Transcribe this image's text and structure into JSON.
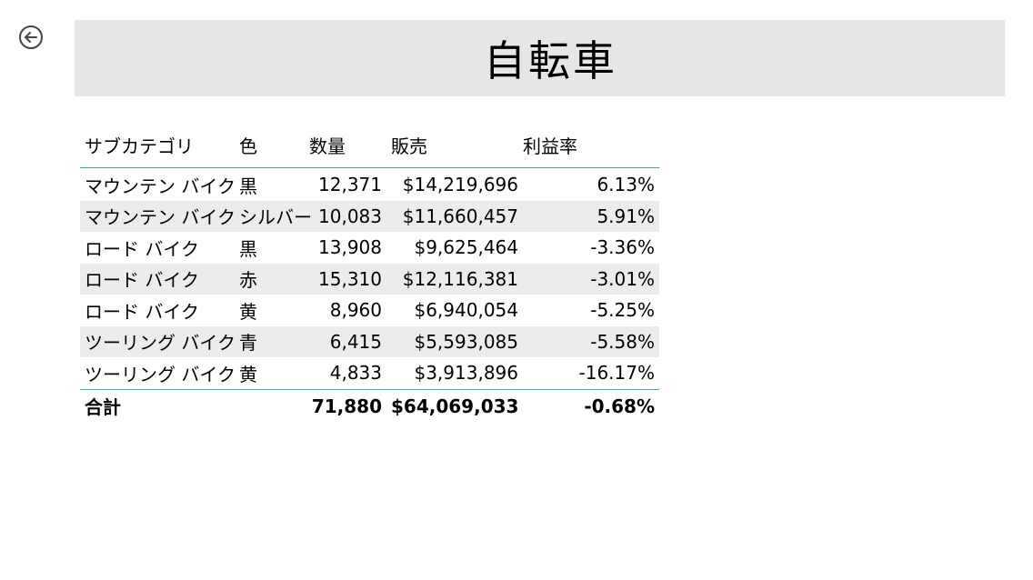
{
  "header": {
    "title": "自転車"
  },
  "nav": {
    "back_icon": "circle-arrow-left-icon"
  },
  "table": {
    "columns": [
      "サブカテゴリ",
      "色",
      "数量",
      "販売",
      "利益率"
    ],
    "rows": [
      [
        "マウンテン バイク",
        "黒",
        "12,371",
        "$14,219,696",
        "6.13%"
      ],
      [
        "マウンテン バイク",
        "シルバー",
        "10,083",
        "$11,660,457",
        "5.91%"
      ],
      [
        "ロード バイク",
        "黒",
        "13,908",
        "$9,625,464",
        "-3.36%"
      ],
      [
        "ロード バイク",
        "赤",
        "15,310",
        "$12,116,381",
        "-3.01%"
      ],
      [
        "ロード バイク",
        "黄",
        "8,960",
        "$6,940,054",
        "-5.25%"
      ],
      [
        "ツーリング バイク",
        "青",
        "6,415",
        "$5,593,085",
        "-5.58%"
      ],
      [
        "ツーリング バイク",
        "黄",
        "4,833",
        "$3,913,896",
        "-16.17%"
      ]
    ],
    "total": {
      "label": "合計",
      "color": "",
      "quantity": "71,880",
      "sales": "$64,069,033",
      "margin": "-0.68%"
    }
  },
  "colors": {
    "title_bg": "#e6e6e6",
    "row_alt_bg": "#ececec",
    "header_rule": "#3a9ad9",
    "total_rule": "#3aa5b8"
  }
}
